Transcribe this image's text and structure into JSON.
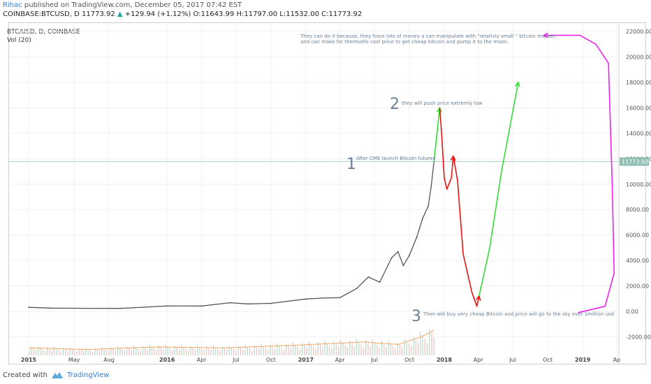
{
  "header": {
    "author": "Rihac",
    "published_text": "published on TradingView.com, December 05, 2017 07:42 EST",
    "symbol_line": "COINBASE:BTCUSD, D",
    "last": "11773.92",
    "change": "+129.94 (+1.12%)",
    "o": "11643.99",
    "h": "11797.00",
    "l": "11532.00",
    "c": "11773.92"
  },
  "legend": {
    "symbol": "BTC/USD, D, COINBASE",
    "volume": "Vol (20)"
  },
  "footer": {
    "created_with": "Created with",
    "brand": "TradingView"
  },
  "colors": {
    "accent": "#2f7fd4",
    "up": "#26a69a",
    "annotation_green": "#33dd33",
    "annotation_red": "#ee1111",
    "annotation_magenta": "#ee22ee",
    "last_price_bg": "#8fbfb2"
  },
  "chart_data": {
    "type": "line",
    "title": "BTC/USD, D, COINBASE",
    "y_ticks": [
      "22000.00",
      "20000.00",
      "18000.00",
      "16000.00",
      "14000.00",
      "12000.00",
      "10000.00",
      "8000.00",
      "6000.00",
      "4000.00",
      "2000.00",
      "0.00",
      "-2000.00"
    ],
    "y_tick_values": [
      22000,
      20000,
      18000,
      16000,
      14000,
      12000,
      10000,
      8000,
      6000,
      4000,
      2000,
      0,
      -2000
    ],
    "x_ticks": [
      "2015",
      "May",
      "Aug",
      "2016",
      "Apr",
      "Jul",
      "Oct",
      "2017",
      "Apr",
      "Jul",
      "Oct",
      "2018",
      "Apr",
      "Jul",
      "Oct",
      "2019",
      "Ap"
    ],
    "x_tick_dates": [
      "2015-01-01",
      "2015-05-01",
      "2015-08-01",
      "2016-01-01",
      "2016-04-01",
      "2016-07-01",
      "2016-10-01",
      "2017-01-01",
      "2017-04-01",
      "2017-07-01",
      "2017-10-01",
      "2018-01-01",
      "2018-04-01",
      "2018-07-01",
      "2018-10-01",
      "2019-01-01",
      "2019-04-01"
    ],
    "ylim": [
      -3500,
      23500
    ],
    "last_price_label": "11773.92",
    "last_price": 11773.92,
    "series": [
      {
        "name": "BTC/USD",
        "x": [
          "2015-01-01",
          "2015-03-01",
          "2015-06-01",
          "2015-09-01",
          "2015-11-01",
          "2016-01-01",
          "2016-04-01",
          "2016-06-15",
          "2016-08-01",
          "2016-10-01",
          "2017-01-01",
          "2017-02-15",
          "2017-04-01",
          "2017-05-15",
          "2017-06-15",
          "2017-07-15",
          "2017-08-15",
          "2017-09-01",
          "2017-09-15",
          "2017-10-01",
          "2017-10-20",
          "2017-11-05",
          "2017-11-20",
          "2017-11-28",
          "2017-12-05"
        ],
        "y": [
          320,
          260,
          240,
          235,
          330,
          430,
          420,
          680,
          590,
          630,
          970,
          1050,
          1080,
          1800,
          2700,
          2300,
          4200,
          4700,
          3600,
          4400,
          5800,
          7300,
          8300,
          9900,
          11773
        ]
      }
    ],
    "volume_series": {
      "name": "Vol (20)",
      "x": [
        "2015-01-01",
        "2015-06-01",
        "2015-12-01",
        "2016-06-01",
        "2016-12-01",
        "2017-06-01",
        "2017-09-01",
        "2017-11-01",
        "2017-12-05"
      ],
      "y": [
        9,
        7,
        10,
        9,
        12,
        16,
        13,
        22,
        30
      ]
    },
    "annotations": [
      {
        "label": "1",
        "text": "After CME launch Bitcoin futures"
      },
      {
        "label": "2",
        "text": "they will push price extremly low"
      },
      {
        "label": "3",
        "text": "Then will buy very cheap Bitcoin and price will go to the sky over 1million usd"
      },
      {
        "label": "",
        "text": "They can do it because, they have lots of money a can manipulate with \"relativly small \" bitcoin market,"
      },
      {
        "label": "",
        "text": "and can make for themselfs cool price to get cheap bitcoin and pump it to the moon."
      }
    ],
    "drawings": [
      {
        "name": "green-up",
        "color": "#33dd33",
        "x": [
          "2017-12-05",
          "2017-12-20"
        ],
        "y": [
          11773,
          16000
        ]
      },
      {
        "name": "red-down-1",
        "color": "#ee1111",
        "x": [
          "2017-12-20",
          "2017-12-25",
          "2018-01-01",
          "2018-01-08",
          "2018-01-20",
          "2018-01-25"
        ],
        "y": [
          16000,
          14000,
          10500,
          9600,
          10500,
          12200
        ]
      },
      {
        "name": "red-down-2",
        "color": "#ee1111",
        "x": [
          "2018-01-25",
          "2018-02-05",
          "2018-02-20",
          "2018-03-15",
          "2018-03-28",
          "2018-04-03"
        ],
        "y": [
          12200,
          10300,
          4500,
          1500,
          400,
          1200
        ]
      },
      {
        "name": "green-up-2",
        "color": "#33dd33",
        "x": [
          "2018-04-03",
          "2018-05-01",
          "2018-06-01",
          "2018-07-15"
        ],
        "y": [
          1200,
          5000,
          11000,
          18000
        ]
      },
      {
        "name": "magenta-loop",
        "color": "#ee22ee",
        "x": [
          "2018-12-20",
          "2019-03-01",
          "2019-03-25",
          "2019-03-20",
          "2019-03-10",
          "2019-02-05",
          "2018-12-25",
          "2018-09-20"
        ],
        "y": [
          -100,
          400,
          3000,
          10000,
          19500,
          21000,
          21700,
          21700
        ]
      }
    ]
  }
}
